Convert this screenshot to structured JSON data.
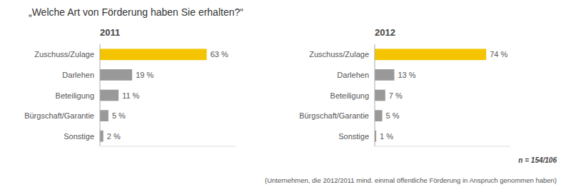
{
  "title": "„Welche Art von Förderung haben Sie erhalten?“",
  "annotations": [
    "n = 154/106",
    "(Unternehmen, die 2012/2011 mind. einmal öffentliche Förderung in Anspruch genommen haben)"
  ],
  "chart_data": [
    {
      "type": "bar",
      "orientation": "horizontal",
      "title": "2011",
      "categories": [
        "Zuschuss/Zulage",
        "Darlehen",
        "Beteiligung",
        "Bürgschaft/Garantie",
        "Sonstige"
      ],
      "values": [
        63,
        19,
        11,
        5,
        2
      ],
      "value_labels": [
        "63 %",
        "19 %",
        "11 %",
        "5 %",
        "2 %"
      ],
      "colors": [
        "#F5C400",
        "#999999",
        "#999999",
        "#999999",
        "#999999"
      ],
      "xlim": [
        0,
        80
      ],
      "data_labels": true,
      "tick_labels": "y",
      "grid": false
    },
    {
      "type": "bar",
      "orientation": "horizontal",
      "title": "2012",
      "categories": [
        "Zuschuss/Zulage",
        "Darlehen",
        "Beteiligung",
        "Bürgschaft/Garantie",
        "Sonstige"
      ],
      "values": [
        74,
        13,
        7,
        5,
        1
      ],
      "value_labels": [
        "74 %",
        "13 %",
        "7 %",
        "5 %",
        "1 %"
      ],
      "colors": [
        "#F5C400",
        "#999999",
        "#999999",
        "#999999",
        "#999999"
      ],
      "xlim": [
        0,
        90
      ],
      "data_labels": true,
      "tick_labels": "y",
      "grid": false
    }
  ]
}
